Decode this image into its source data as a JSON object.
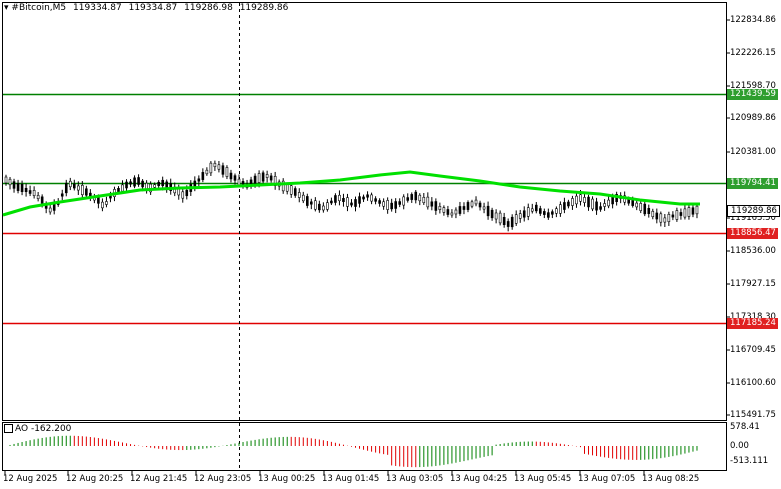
{
  "header": {
    "symbol": "#Bitcoin,M5",
    "open": "119334.87",
    "high": "119334.87",
    "low": "119286.98",
    "close": "119289.86"
  },
  "ao": {
    "title": "AO -162.200",
    "max_label": "578.41",
    "zero_label": "0.00",
    "min_label": "-513.111"
  },
  "price_axis": [
    "122834.86",
    "122226.15",
    "121598.70",
    "120989.86",
    "120381.00",
    "119163.50",
    "118536.00",
    "117927.15",
    "117318.30",
    "116709.45",
    "116100.60",
    "115491.75"
  ],
  "tags": {
    "level_top": {
      "label": "121439.59",
      "color": "#2e9e2e"
    },
    "level_mid": {
      "label": "119794.41",
      "color": "#2e9e2e"
    },
    "current": {
      "label": "119289.86",
      "color": "#ffffff"
    },
    "level_r1": {
      "label": "118856.47",
      "color": "#e02020"
    },
    "level_r2": {
      "label": "117185.24",
      "color": "#e02020"
    }
  },
  "time_axis": [
    "12 Aug 2025",
    "12 Aug 20:25",
    "12 Aug 21:45",
    "12 Aug 23:05",
    "13 Aug 00:25",
    "13 Aug 01:45",
    "13 Aug 03:05",
    "13 Aug 04:25",
    "13 Aug 05:45",
    "13 Aug 07:05",
    "13 Aug 08:25"
  ],
  "colors": {
    "ma": "#00e000",
    "support": "#008000",
    "resistance": "#e00000",
    "ao_up": "#008000",
    "ao_down": "#e00000"
  }
}
